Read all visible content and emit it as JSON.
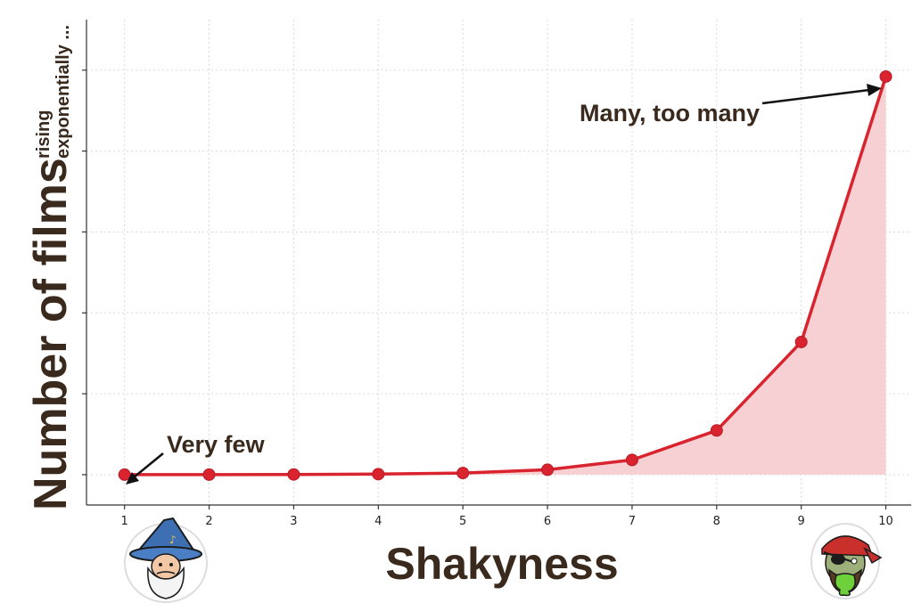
{
  "chart_data": {
    "type": "area",
    "xlabel": "Shakyness",
    "ylabel": "Number of films",
    "ylabel_sub": [
      "rising",
      "exponentially ..."
    ],
    "x": [
      1,
      2,
      3,
      4,
      5,
      6,
      7,
      8,
      9,
      10
    ],
    "y": [
      1,
      3,
      9,
      27,
      81,
      243,
      729,
      2187,
      6561,
      19683
    ],
    "xlim": [
      0.55,
      10.3
    ],
    "ylim": [
      -1500,
      22500
    ],
    "x_ticks": [
      1,
      2,
      3,
      4,
      5,
      6,
      7,
      8,
      9,
      10
    ],
    "y_ticks": [
      0,
      4000,
      8000,
      12000,
      16000,
      20000,
      24000
    ],
    "y_ticks_labeled": false,
    "grid": true,
    "annotations": [
      {
        "text": "Very few",
        "x": 1,
        "y": 1
      },
      {
        "text": "Many, too many",
        "x": 10,
        "y": 19683
      }
    ],
    "colors": {
      "line": "#d9232e",
      "fill": "#f6d0d3",
      "text": "#3a2a1d",
      "axis": "#333333",
      "grid": "#d9d9d9"
    }
  },
  "icons": {
    "left": "wizard-icon",
    "right": "sick-pirate-icon"
  }
}
